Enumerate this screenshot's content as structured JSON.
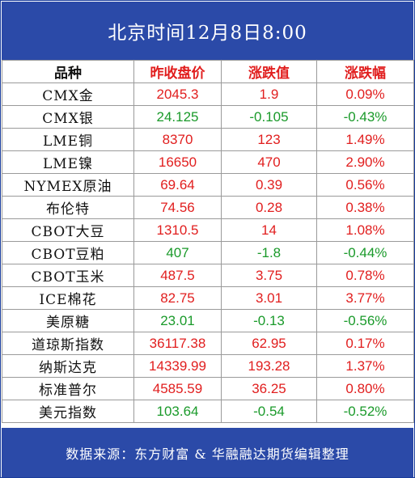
{
  "header": {
    "title": "北京时间12月8日8:00"
  },
  "table": {
    "columns": [
      "品种",
      "昨收盘价",
      "涨跌值",
      "涨跌幅"
    ],
    "rows": [
      {
        "name": "CMX金",
        "close": "2045.3",
        "change": "1.9",
        "pct": "0.09%",
        "dir": "up"
      },
      {
        "name": "CMX银",
        "close": "24.125",
        "change": "-0.105",
        "pct": "-0.43%",
        "dir": "down"
      },
      {
        "name": "LME铜",
        "close": "8370",
        "change": "123",
        "pct": "1.49%",
        "dir": "up"
      },
      {
        "name": "LME镍",
        "close": "16650",
        "change": "470",
        "pct": "2.90%",
        "dir": "up"
      },
      {
        "name": "NYMEX原油",
        "close": "69.64",
        "change": "0.39",
        "pct": "0.56%",
        "dir": "up"
      },
      {
        "name": "布伦特",
        "close": "74.56",
        "change": "0.28",
        "pct": "0.38%",
        "dir": "up"
      },
      {
        "name": "CBOT大豆",
        "close": "1310.5",
        "change": "14",
        "pct": "1.08%",
        "dir": "up"
      },
      {
        "name": "CBOT豆粕",
        "close": "407",
        "change": "-1.8",
        "pct": "-0.44%",
        "dir": "down"
      },
      {
        "name": "CBOT玉米",
        "close": "487.5",
        "change": "3.75",
        "pct": "0.78%",
        "dir": "up"
      },
      {
        "name": "ICE棉花",
        "close": "82.75",
        "change": "3.01",
        "pct": "3.77%",
        "dir": "up"
      },
      {
        "name": "美原糖",
        "close": "23.01",
        "change": "-0.13",
        "pct": "-0.56%",
        "dir": "down"
      },
      {
        "name": "道琼斯指数",
        "close": "36117.38",
        "change": "62.95",
        "pct": "0.17%",
        "dir": "up"
      },
      {
        "name": "纳斯达克",
        "close": "14339.99",
        "change": "193.28",
        "pct": "1.37%",
        "dir": "up"
      },
      {
        "name": "标准普尔",
        "close": "4585.59",
        "change": "36.25",
        "pct": "0.80%",
        "dir": "up"
      },
      {
        "name": "美元指数",
        "close": "103.64",
        "change": "-0.54",
        "pct": "-0.52%",
        "dir": "down"
      }
    ]
  },
  "footer": {
    "source": "数据来源：东方财富 & 华融融达期货编辑整理"
  },
  "colors": {
    "header_bg": "#2b4aa8",
    "up": "#e11e1e",
    "down": "#1a9a2a"
  }
}
